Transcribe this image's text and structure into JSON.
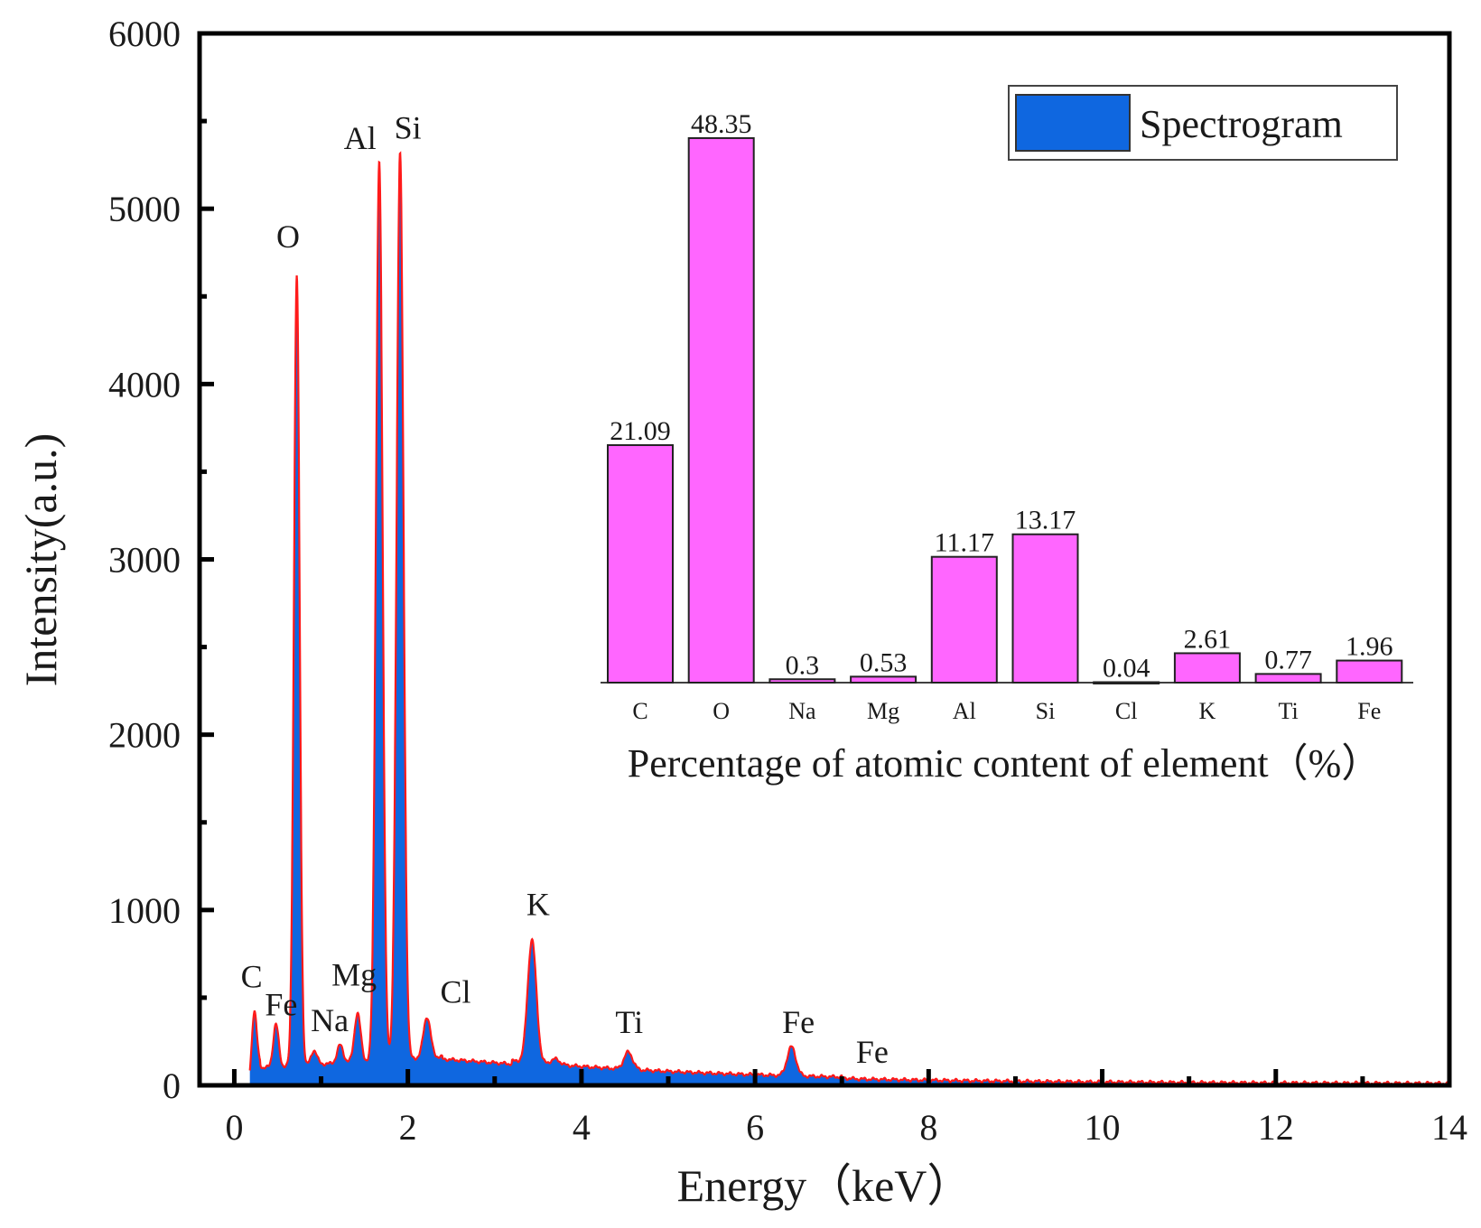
{
  "chart_data": [
    {
      "type": "area",
      "title": "",
      "xlabel": "Energy（keV）",
      "ylabel": "Intensity(a.u.)",
      "xlim": [
        -0.4,
        14
      ],
      "ylim": [
        0,
        6000
      ],
      "x_ticks": [
        0,
        2,
        4,
        6,
        8,
        10,
        12,
        14
      ],
      "y_ticks": [
        0,
        1000,
        2000,
        3000,
        4000,
        5000,
        6000
      ],
      "grid": false,
      "legend": {
        "position": "top-right",
        "entries": [
          "Spectrogram"
        ]
      },
      "colors": {
        "fill": "#0f67e0",
        "line": "#ff1a1a"
      },
      "series": [
        {
          "name": "Spectrogram",
          "peaks": [
            {
              "x": 0.23,
              "y": 420
            },
            {
              "x": 0.48,
              "y": 350
            },
            {
              "x": 0.72,
              "y": 4620
            },
            {
              "x": 0.92,
              "y": 200
            },
            {
              "x": 1.22,
              "y": 230
            },
            {
              "x": 1.42,
              "y": 410
            },
            {
              "x": 1.67,
              "y": 5270
            },
            {
              "x": 1.91,
              "y": 5320
            },
            {
              "x": 2.22,
              "y": 390
            },
            {
              "x": 2.42,
              "y": 90
            },
            {
              "x": 3.43,
              "y": 830
            },
            {
              "x": 3.7,
              "y": 150
            },
            {
              "x": 4.54,
              "y": 190
            },
            {
              "x": 4.98,
              "y": 50
            },
            {
              "x": 6.42,
              "y": 220
            },
            {
              "x": 7.07,
              "y": 40
            },
            {
              "x": 9.46,
              "y": 15
            }
          ]
        }
      ],
      "annotations": [
        {
          "text": "C",
          "x": 0.2,
          "y": 560
        },
        {
          "text": "Fe",
          "x": 0.54,
          "y": 400
        },
        {
          "text": "O",
          "x": 0.62,
          "y": 4780
        },
        {
          "text": "Na",
          "x": 1.1,
          "y": 310
        },
        {
          "text": "Mg",
          "x": 1.38,
          "y": 570
        },
        {
          "text": "Al",
          "x": 1.45,
          "y": 5340
        },
        {
          "text": "Si",
          "x": 2.0,
          "y": 5400
        },
        {
          "text": "Cl",
          "x": 2.55,
          "y": 470
        },
        {
          "text": "K",
          "x": 3.5,
          "y": 970
        },
        {
          "text": "Ti",
          "x": 4.55,
          "y": 300
        },
        {
          "text": "Fe",
          "x": 6.5,
          "y": 300
        },
        {
          "text": "Fe",
          "x": 7.35,
          "y": 130
        }
      ]
    },
    {
      "type": "bar",
      "title": "",
      "xlabel": "Percentage of atomic content of element（%）",
      "ylabel": "",
      "ylim": [
        0,
        55
      ],
      "color": "#ff66ff",
      "categories": [
        "C",
        "O",
        "Na",
        "Mg",
        "Al",
        "Si",
        "Cl",
        "K",
        "Ti",
        "Fe"
      ],
      "values": [
        21.09,
        48.35,
        0.3,
        0.53,
        11.17,
        13.17,
        0.04,
        2.61,
        0.77,
        1.96
      ],
      "labels": [
        "21.09",
        "48.35",
        "0.3",
        "0.53",
        "11.17",
        "13.17",
        "0.04",
        "2.61",
        "0.77",
        "1.96"
      ]
    }
  ]
}
